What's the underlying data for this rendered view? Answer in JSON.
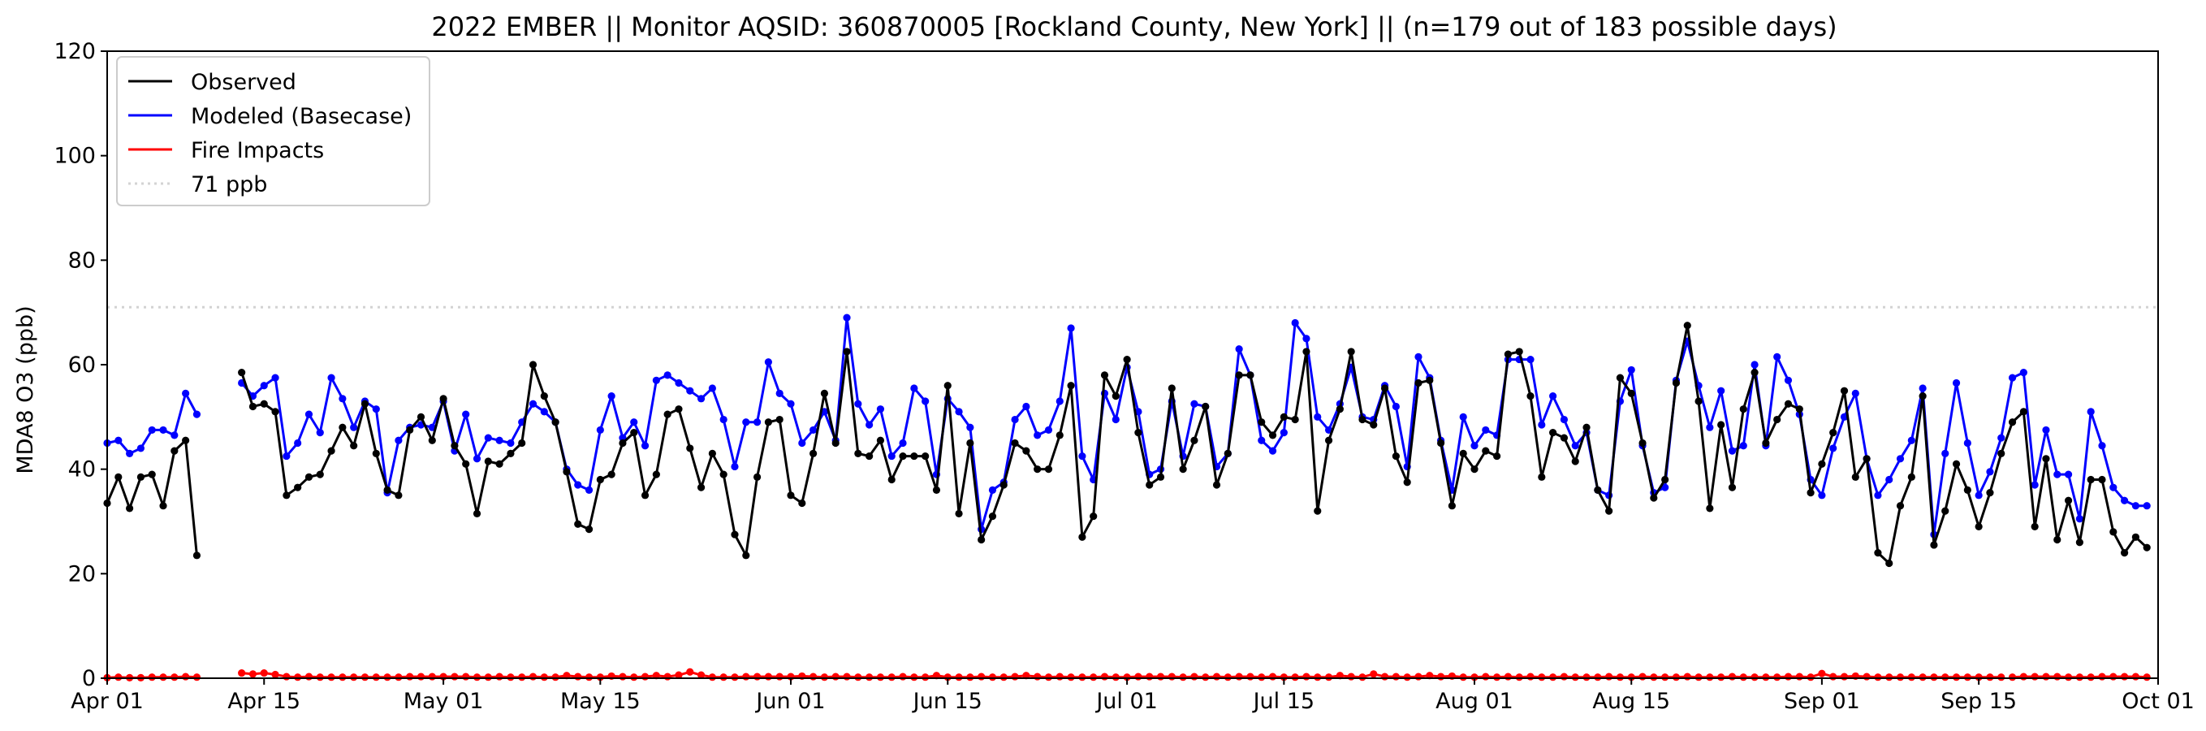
{
  "chart_data": {
    "type": "line",
    "title": "2022 EMBER || Monitor AQSID: 360870005 [Rockland County, New York] || (n=179 out of 183 possible days)",
    "xlabel": "",
    "ylabel": "MDA8 O3 (ppb)",
    "x_range": [
      "2022-04-01",
      "2022-10-01"
    ],
    "ylim": [
      0,
      120
    ],
    "y_ticks": [
      0,
      20,
      40,
      60,
      80,
      100,
      120
    ],
    "x_ticks": [
      {
        "date": "2022-04-01",
        "label": "Apr 01"
      },
      {
        "date": "2022-04-15",
        "label": "Apr 15"
      },
      {
        "date": "2022-05-01",
        "label": "May 01"
      },
      {
        "date": "2022-05-15",
        "label": "May 15"
      },
      {
        "date": "2022-06-01",
        "label": "Jun 01"
      },
      {
        "date": "2022-06-15",
        "label": "Jun 15"
      },
      {
        "date": "2022-07-01",
        "label": "Jul 01"
      },
      {
        "date": "2022-07-15",
        "label": "Jul 15"
      },
      {
        "date": "2022-08-01",
        "label": "Aug 01"
      },
      {
        "date": "2022-08-15",
        "label": "Aug 15"
      },
      {
        "date": "2022-09-01",
        "label": "Sep 01"
      },
      {
        "date": "2022-09-15",
        "label": "Sep 15"
      },
      {
        "date": "2022-10-01",
        "label": "Oct 01"
      }
    ],
    "grid": false,
    "legend_position": "top-left",
    "legend": [
      {
        "label": "Observed",
        "color": "#000000",
        "style": "solid"
      },
      {
        "label": "Modeled (Basecase)",
        "color": "#0000ff",
        "style": "solid"
      },
      {
        "label": "Fire Impacts",
        "color": "#ff0000",
        "style": "solid"
      },
      {
        "label": "71 ppb",
        "color": "#d3d3d3",
        "style": "dotted"
      }
    ],
    "reference_line": {
      "value": 71,
      "label": "71 ppb",
      "color": "#d3d3d3"
    },
    "series": [
      {
        "name": "Observed",
        "color": "#000000",
        "segments": [
          {
            "start": "2022-04-01",
            "values": [
              33.5,
              38.5,
              32.5,
              38.5,
              39,
              33,
              43.5,
              45.5,
              23.5
            ]
          },
          {
            "start": "2022-04-13",
            "values": [
              58.5,
              52,
              52.5,
              51,
              35,
              36.5,
              38.5,
              39,
              43.5,
              48,
              44.5,
              52.5,
              43,
              36,
              35,
              47.5,
              50,
              45.5,
              53.5,
              44.5,
              41,
              31.5,
              41.5,
              41,
              43,
              45,
              60,
              54,
              49,
              39.5,
              29.5,
              28.5,
              38,
              39,
              45,
              47,
              35,
              39,
              50.5,
              51.5,
              44,
              36.5,
              43,
              39,
              27.5,
              23.5,
              38.5,
              49,
              49.5,
              35,
              33.5,
              43,
              54.5,
              45,
              62.5,
              43,
              42.5,
              45.5,
              38,
              42.5,
              42.5,
              42.5,
              36,
              56,
              31.5,
              45,
              26.5,
              31,
              37,
              45,
              43.5,
              40,
              40,
              46.5,
              56,
              27,
              31,
              58,
              54,
              61,
              47,
              37,
              38.5,
              55.5,
              40,
              45.5,
              52,
              37,
              43,
              58,
              58,
              49,
              46.5,
              50,
              49.5,
              62.5,
              32,
              45.5,
              51.5,
              62.5,
              49.5,
              48.5,
              55.5,
              42.5,
              37.5,
              56.5,
              57,
              45,
              33,
              43,
              40,
              43.5,
              42.5,
              62,
              62.5,
              54,
              38.5,
              47,
              46,
              41.5,
              48,
              36,
              32,
              57.5,
              54.5,
              45,
              34.5,
              38,
              56.5,
              67.5,
              53,
              32.5,
              48.5,
              36.5,
              51.5,
              58.5,
              45,
              49.5,
              52.5,
              51.5,
              35.5,
              41,
              47,
              55,
              38.5,
              42,
              24,
              22,
              33,
              38.5,
              54,
              25.5,
              32,
              41,
              36,
              29,
              35.5,
              43,
              49,
              51,
              29,
              42,
              26.5,
              34,
              26,
              38,
              38,
              28,
              24,
              27,
              25
            ]
          }
        ]
      },
      {
        "name": "Modeled (Basecase)",
        "color": "#0000ff",
        "segments": [
          {
            "start": "2022-04-01",
            "values": [
              45,
              45.5,
              43,
              44,
              47.5,
              47.5,
              46.5,
              54.5,
              50.5
            ]
          },
          {
            "start": "2022-04-13",
            "values": [
              56.5,
              54,
              56,
              57.5,
              42.5,
              45,
              50.5,
              47,
              57.5,
              53.5,
              48,
              53,
              51.5,
              35.5,
              45.5,
              48,
              48.5,
              48,
              53,
              43.5,
              50.5,
              42,
              46,
              45.5,
              45,
              49,
              52.5,
              51,
              49,
              40,
              37,
              36,
              47.5,
              54,
              46,
              49,
              44.5,
              57,
              58,
              56.5,
              55,
              53.5,
              55.5,
              49.5,
              40.5,
              49,
              49,
              60.5,
              54.5,
              52.5,
              45,
              47.5,
              51,
              45.5,
              69,
              52.5,
              48.5,
              51.5,
              42.5,
              45,
              55.5,
              53,
              39,
              53.5,
              51,
              48,
              28.5,
              36,
              37.5,
              49.5,
              52,
              46.5,
              47.5,
              53,
              67,
              42.5,
              38,
              54.5,
              49.5,
              59.5,
              51,
              39,
              40,
              53,
              42.5,
              52.5,
              52,
              40.5,
              43,
              63,
              58,
              45.5,
              43.5,
              47,
              68,
              65,
              50,
              47.5,
              52.5,
              59.5,
              50,
              49.5,
              56,
              52,
              40.5,
              61.5,
              57.5,
              45.5,
              36,
              50,
              44.5,
              47.5,
              46.5,
              61,
              61,
              61,
              48.5,
              54,
              49.5,
              44.5,
              47,
              36,
              35,
              53,
              59,
              44.5,
              35.5,
              36.5,
              57,
              64.5,
              56,
              48,
              55,
              43.5,
              44.5,
              60,
              44.5,
              61.5,
              57,
              50.5,
              38,
              35,
              44,
              50,
              54.5,
              42,
              35,
              38,
              42,
              45.5,
              55.5,
              27.5,
              43,
              56.5,
              45,
              35,
              39.5,
              46,
              57.5,
              58.5,
              37,
              47.5,
              39,
              39,
              30.5,
              51,
              44.5,
              36.5,
              34,
              33,
              33
            ]
          }
        ]
      },
      {
        "name": "Fire Impacts",
        "color": "#ff0000",
        "segments": [
          {
            "start": "2022-04-01",
            "values": [
              0.1,
              0.2,
              0.1,
              0.1,
              0.2,
              0.2,
              0.2,
              0.3,
              0.2
            ]
          },
          {
            "start": "2022-04-13",
            "values": [
              1,
              0.8,
              1,
              0.7,
              0.3,
              0.2,
              0.3,
              0.2,
              0.2,
              0.2,
              0.2,
              0.2,
              0.2,
              0.2,
              0.2,
              0.3,
              0.3,
              0.3,
              0.3,
              0.3,
              0.3,
              0.2,
              0.2,
              0.3,
              0.2,
              0.2,
              0.3,
              0.2,
              0.2,
              0.5,
              0.3,
              0.2,
              0.2,
              0.4,
              0.3,
              0.2,
              0.3,
              0.5,
              0.3,
              0.6,
              1.2,
              0.6,
              0.2,
              0.2,
              0.2,
              0.3,
              0.3,
              0.3,
              0.3,
              0.3,
              0.4,
              0.3,
              0.2,
              0.3,
              0.3,
              0.2,
              0.2,
              0.2,
              0.2,
              0.3,
              0.2,
              0.2,
              0.5,
              0.2,
              0.2,
              0.2,
              0.3,
              0.2,
              0.2,
              0.3,
              0.5,
              0.3,
              0.2,
              0.3,
              0.2,
              0.2,
              0.2,
              0.3,
              0.2,
              0.2,
              0.3,
              0.3,
              0.3,
              0.3,
              0.2,
              0.3,
              0.2,
              0.3,
              0.2,
              0.3,
              0.3,
              0.2,
              0.3,
              0.2,
              0.2,
              0.3,
              0.2,
              0.2,
              0.5,
              0.3,
              0.2,
              0.8,
              0.3,
              0.3,
              0.2,
              0.3,
              0.5,
              0.3,
              0.4,
              0.2,
              0.2,
              0.3,
              0.2,
              0.3,
              0.2,
              0.3,
              0.2,
              0.2,
              0.3,
              0.2,
              0.2,
              0.2,
              0.3,
              0.2,
              0.2,
              0.3,
              0.2,
              0.2,
              0.2,
              0.3,
              0.2,
              0.2,
              0.2,
              0.3,
              0.2,
              0.2,
              0.2,
              0.2,
              0.3,
              0.3,
              0.2,
              0.9,
              0.3,
              0.3,
              0.4,
              0.3,
              0.2,
              0.2,
              0.2,
              0.2,
              0.2,
              0.2,
              0.2,
              0.2,
              0.2,
              0.2,
              0.2,
              0.2
            ]
          },
          {
            "start": "2022-09-18",
            "values": [
              0.2,
              0.3,
              0.3,
              0.3,
              0.3,
              0.2,
              0.2,
              0.2,
              0.3,
              0.3,
              0.3,
              0.3,
              0.2
            ]
          }
        ]
      }
    ]
  }
}
